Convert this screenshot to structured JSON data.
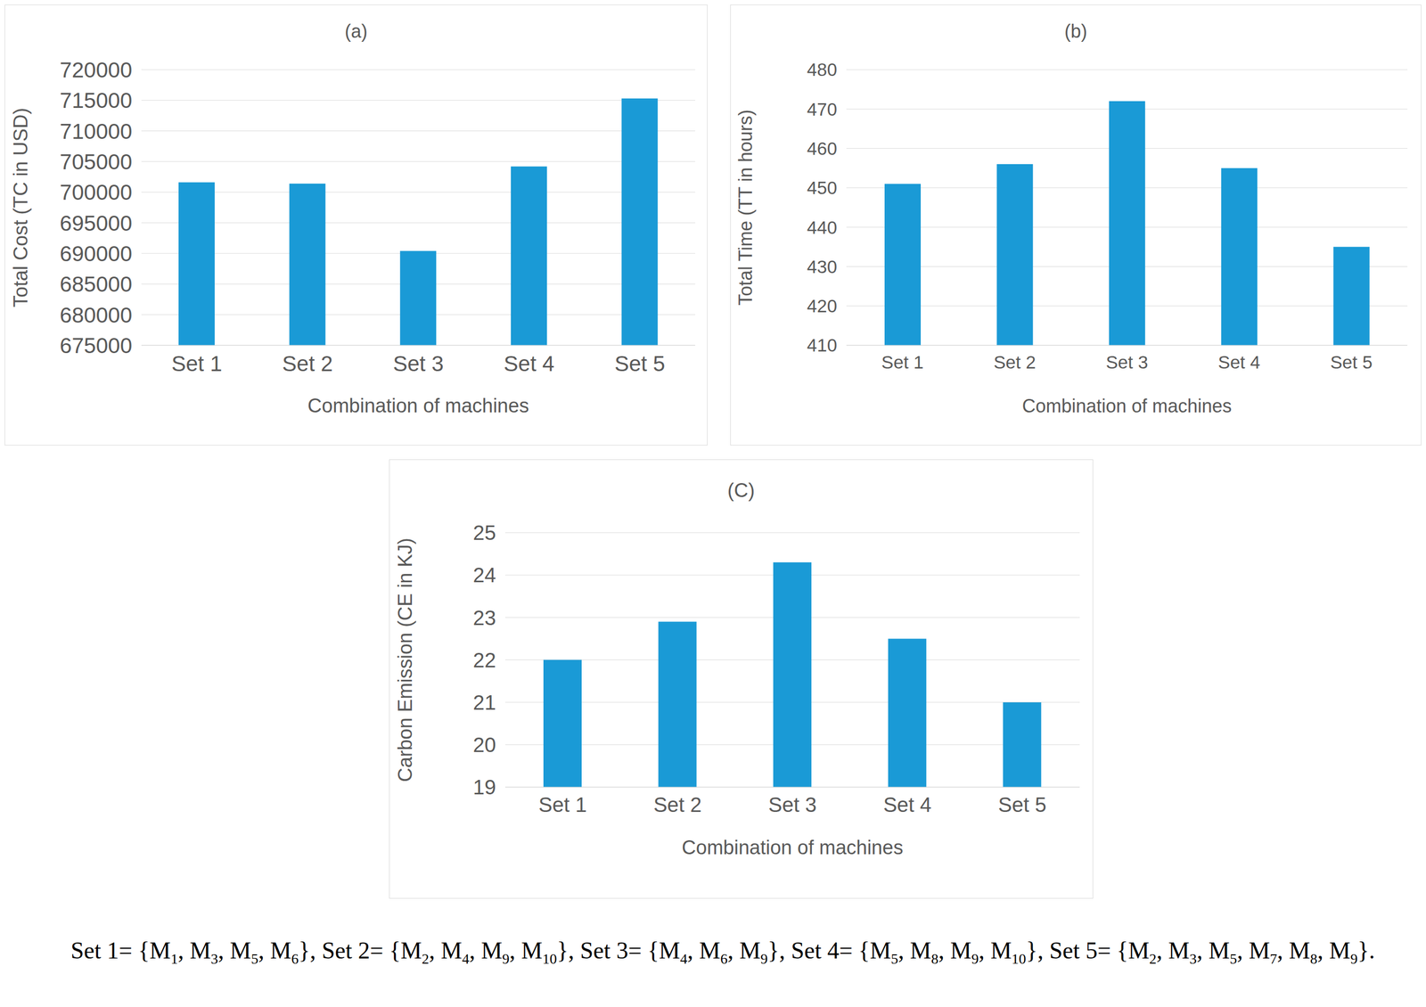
{
  "chart_data": [
    {
      "type": "bar",
      "title": "(a)",
      "x_label": "Combination of machines",
      "y_label": "Total Cost (TC in USD)",
      "categories": [
        "Set 1",
        "Set 2",
        "Set 3",
        "Set 4",
        "Set 5"
      ],
      "values": [
        701600,
        701400,
        690400,
        704200,
        715300
      ],
      "color": "#1a9ad6",
      "ylim": [
        675000,
        720000
      ],
      "yticks": [
        675000,
        680000,
        685000,
        690000,
        695000,
        700000,
        705000,
        710000,
        715000,
        720000
      ],
      "grid": true
    },
    {
      "type": "bar",
      "title": "(b)",
      "x_label": "Combination of machines",
      "y_label": "Total Time (TT in hours)",
      "categories": [
        "Set 1",
        "Set 2",
        "Set 3",
        "Set 4",
        "Set 5"
      ],
      "values": [
        451,
        456,
        472,
        455,
        435
      ],
      "color": "#1a9ad6",
      "ylim": [
        410,
        480
      ],
      "yticks": [
        410,
        420,
        430,
        440,
        450,
        460,
        470,
        480
      ],
      "grid": true
    },
    {
      "type": "bar",
      "title": "(C)",
      "x_label": "Combination of machines",
      "y_label": "Carbon Emission (CE in KJ)",
      "categories": [
        "Set 1",
        "Set 2",
        "Set 3",
        "Set 4",
        "Set 5"
      ],
      "values": [
        22,
        22.9,
        24.3,
        22.5,
        21
      ],
      "color": "#1a9ad6",
      "ylim": [
        19,
        25
      ],
      "yticks": [
        19,
        20,
        21,
        22,
        23,
        24,
        25
      ],
      "grid": true
    }
  ],
  "caption": [
    {
      "text": "Set 1= {M",
      "sub": "1"
    },
    {
      "text": ", M",
      "sub": "3"
    },
    {
      "text": ", M",
      "sub": "5"
    },
    {
      "text": ", M",
      "sub": "6"
    },
    {
      "text": "}, Set 2= {M",
      "sub": "2"
    },
    {
      "text": ", M",
      "sub": "4"
    },
    {
      "text": ", M",
      "sub": "9"
    },
    {
      "text": ", M",
      "sub": "10"
    },
    {
      "text": "}, Set 3= {M",
      "sub": "4"
    },
    {
      "text": ", M",
      "sub": "6"
    },
    {
      "text": ", M",
      "sub": "9"
    },
    {
      "text": "}, Set 4= {M",
      "sub": "5"
    },
    {
      "text": ", M",
      "sub": "8"
    },
    {
      "text": ", M",
      "sub": "9"
    },
    {
      "text": ", M",
      "sub": "10"
    },
    {
      "text": "}, Set 5= {M",
      "sub": "2"
    },
    {
      "text": ", M",
      "sub": "3"
    },
    {
      "text": ", M",
      "sub": "5"
    },
    {
      "text": ", M",
      "sub": "7"
    },
    {
      "text": ", M",
      "sub": "8"
    },
    {
      "text": ", M",
      "sub": "9"
    },
    {
      "text": "}."
    }
  ]
}
